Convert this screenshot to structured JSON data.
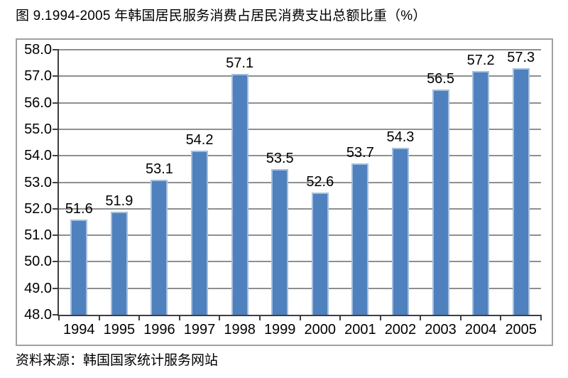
{
  "page": {
    "title": "图 9.1994-2005 年韩国居民服务消费占居民消费支出总额比重（%）",
    "source_note": "资料来源：韩国国家统计服务网站"
  },
  "chart_data": {
    "type": "bar",
    "title": "图 9.1994-2005 年韩国居民服务消费占居民消费支出总额比重（%）",
    "categories": [
      "1994",
      "1995",
      "1996",
      "1997",
      "1998",
      "1999",
      "2000",
      "2001",
      "2002",
      "2003",
      "2004",
      "2005"
    ],
    "values": [
      51.6,
      51.9,
      53.1,
      54.2,
      57.1,
      53.5,
      52.6,
      53.7,
      54.3,
      56.5,
      57.2,
      57.3
    ],
    "data_labels": [
      "51.6",
      "51.9",
      "53.1",
      "54.2",
      "57.1",
      "53.5",
      "52.6",
      "53.7",
      "54.3",
      "56.5",
      "57.2",
      "57.3"
    ],
    "xlabel": "",
    "ylabel": "",
    "ylim": [
      48.0,
      58.0
    ],
    "y_tick_labels": [
      "48.0",
      "49.0",
      "50.0",
      "51.0",
      "52.0",
      "53.0",
      "54.0",
      "55.0",
      "56.0",
      "57.0",
      "58.0"
    ],
    "grid": true,
    "legend_position": "none",
    "annotations": [
      "资料来源：韩国国家统计服务网站"
    ]
  },
  "colors": {
    "bar_fill": "#4E81BD",
    "bar_border": "#A5BEDD",
    "gridline": "#8F8F8F",
    "axis": "#3F3F3F",
    "frame_border": "#A0A0A0",
    "text": "#000000"
  }
}
